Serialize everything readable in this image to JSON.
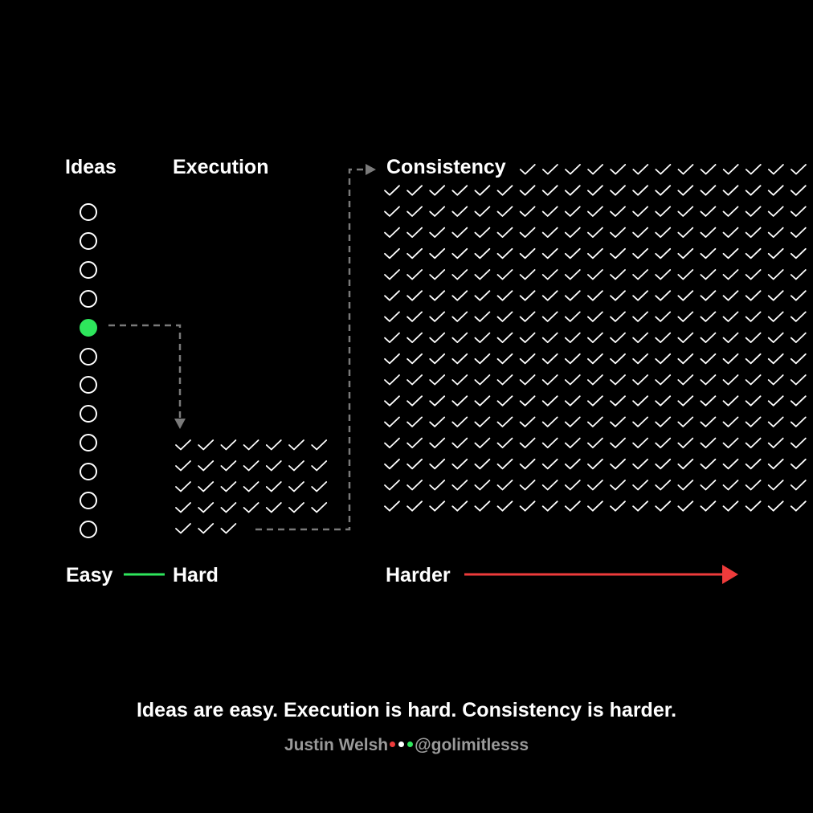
{
  "headers": {
    "ideas": "Ideas",
    "execution": "Execution",
    "consistency": "Consistency"
  },
  "ideas": {
    "count": 12,
    "active_index": 4,
    "active_color": "#2ee65c"
  },
  "execution": {
    "checks_per_row": 7,
    "full_rows": 4,
    "last_row_checks": 3
  },
  "consistency": {
    "columns": 19,
    "rows": 17,
    "first_row_checks": 13
  },
  "difficulty": {
    "labels": [
      "Easy",
      "Hard",
      "Harder"
    ],
    "colors": {
      "easy": "#2ee65c",
      "hard_start": "#4caf50",
      "hard_end": "#a07a4a",
      "harder": "#ee3b3b"
    }
  },
  "caption": "Ideas are easy. Execution is hard. Consistency is harder.",
  "credit": {
    "author": "Justin Welsh",
    "handle": "@golimitlesss",
    "dot_colors": [
      "#ee3b3b",
      "#ffffff",
      "#2ee65c"
    ]
  }
}
